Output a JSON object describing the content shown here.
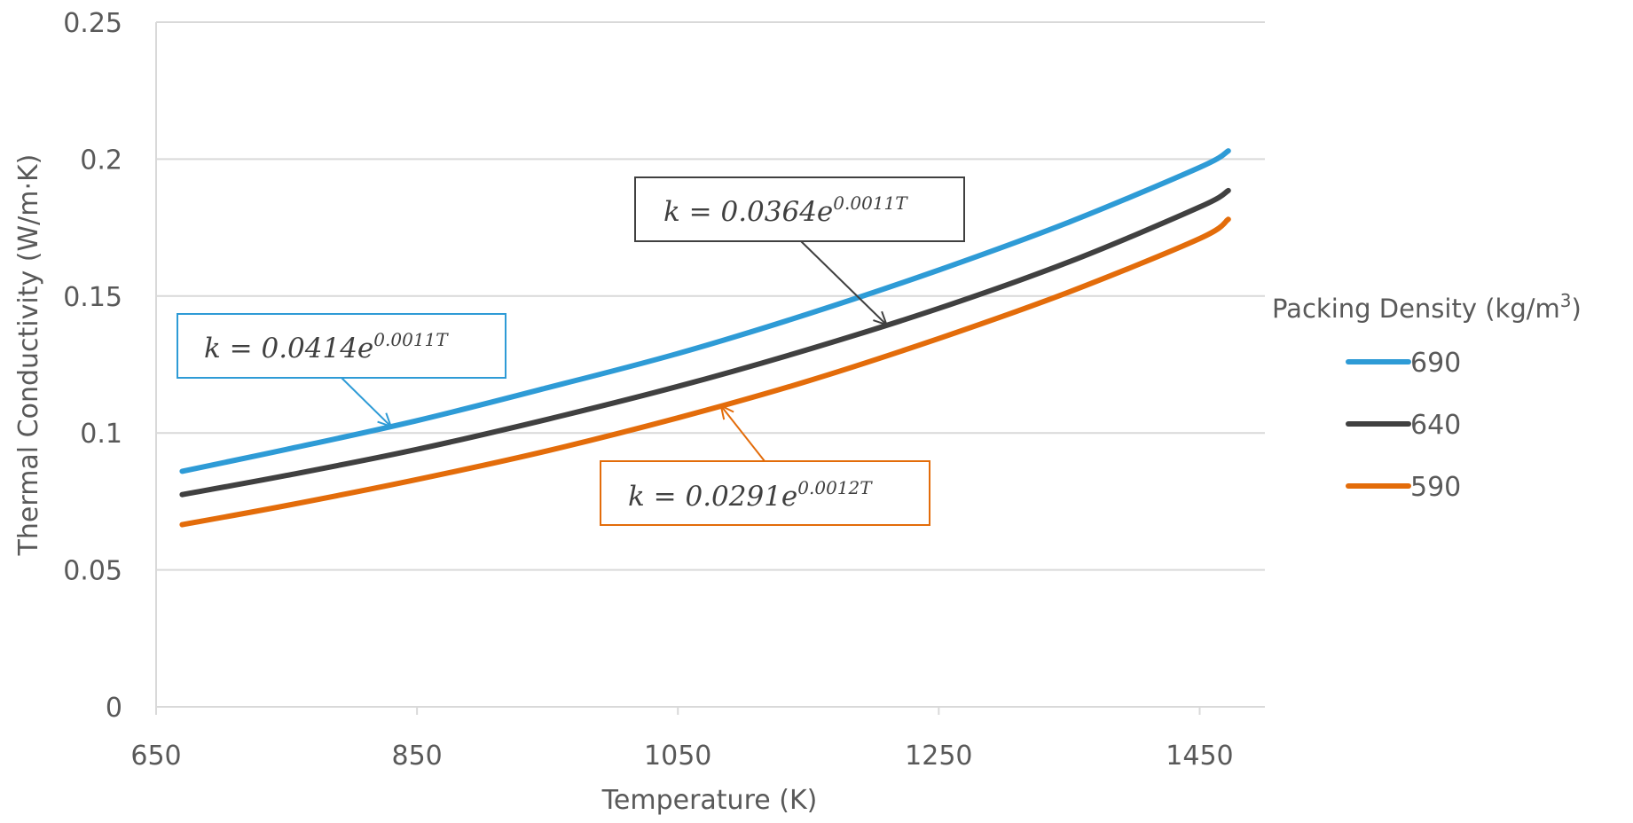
{
  "chart_data": {
    "type": "line",
    "xlabel": "Temperature (K)",
    "ylabel": "Thermal Conductivity (W/m·K)",
    "xlim": [
      650,
      1500
    ],
    "ylim": [
      0,
      0.25
    ],
    "x_ticks": [
      650,
      850,
      1050,
      1250,
      1450
    ],
    "x_tick_labels": [
      "650",
      "850",
      "1050",
      "1250",
      "1450"
    ],
    "y_ticks": [
      0,
      0.05,
      0.1,
      0.15,
      0.2,
      0.25
    ],
    "y_tick_labels": [
      "0",
      "0.05",
      "0.1",
      "0.15",
      "0.2",
      "0.25"
    ],
    "grid": "horizontal",
    "legend": {
      "title": "Packing Density (kg/m",
      "title_superscript": "3",
      "title_suffix": ")",
      "placement": "right"
    },
    "series": [
      {
        "name": "690",
        "color": "#2E9BD6",
        "x": [
          670,
          750,
          850,
          950,
          1050,
          1150,
          1250,
          1350,
          1450,
          1472
        ],
        "y": [
          0.086,
          0.094,
          0.1045,
          0.1165,
          0.129,
          0.1435,
          0.1595,
          0.177,
          0.197,
          0.203
        ]
      },
      {
        "name": "640",
        "color": "#404040",
        "x": [
          670,
          750,
          850,
          950,
          1050,
          1150,
          1250,
          1350,
          1450,
          1472
        ],
        "y": [
          0.0775,
          0.0845,
          0.094,
          0.105,
          0.117,
          0.1305,
          0.1455,
          0.1625,
          0.1825,
          0.1885
        ]
      },
      {
        "name": "590",
        "color": "#E36C0A",
        "x": [
          670,
          750,
          850,
          950,
          1050,
          1150,
          1250,
          1350,
          1450,
          1472
        ],
        "y": [
          0.0665,
          0.0735,
          0.083,
          0.0935,
          0.1055,
          0.119,
          0.1345,
          0.1515,
          0.171,
          0.178
        ]
      }
    ],
    "annotations": [
      {
        "text": "k = 0.0414e",
        "exponent": "0.0011T",
        "series": "690",
        "color": "#2E9BD6"
      },
      {
        "text": "k = 0.0364e",
        "exponent": "0.0011T",
        "series": "640",
        "color": "#404040"
      },
      {
        "text": "k = 0.0291e",
        "exponent": "0.0012T",
        "series": "590",
        "color": "#E36C0A"
      }
    ]
  }
}
